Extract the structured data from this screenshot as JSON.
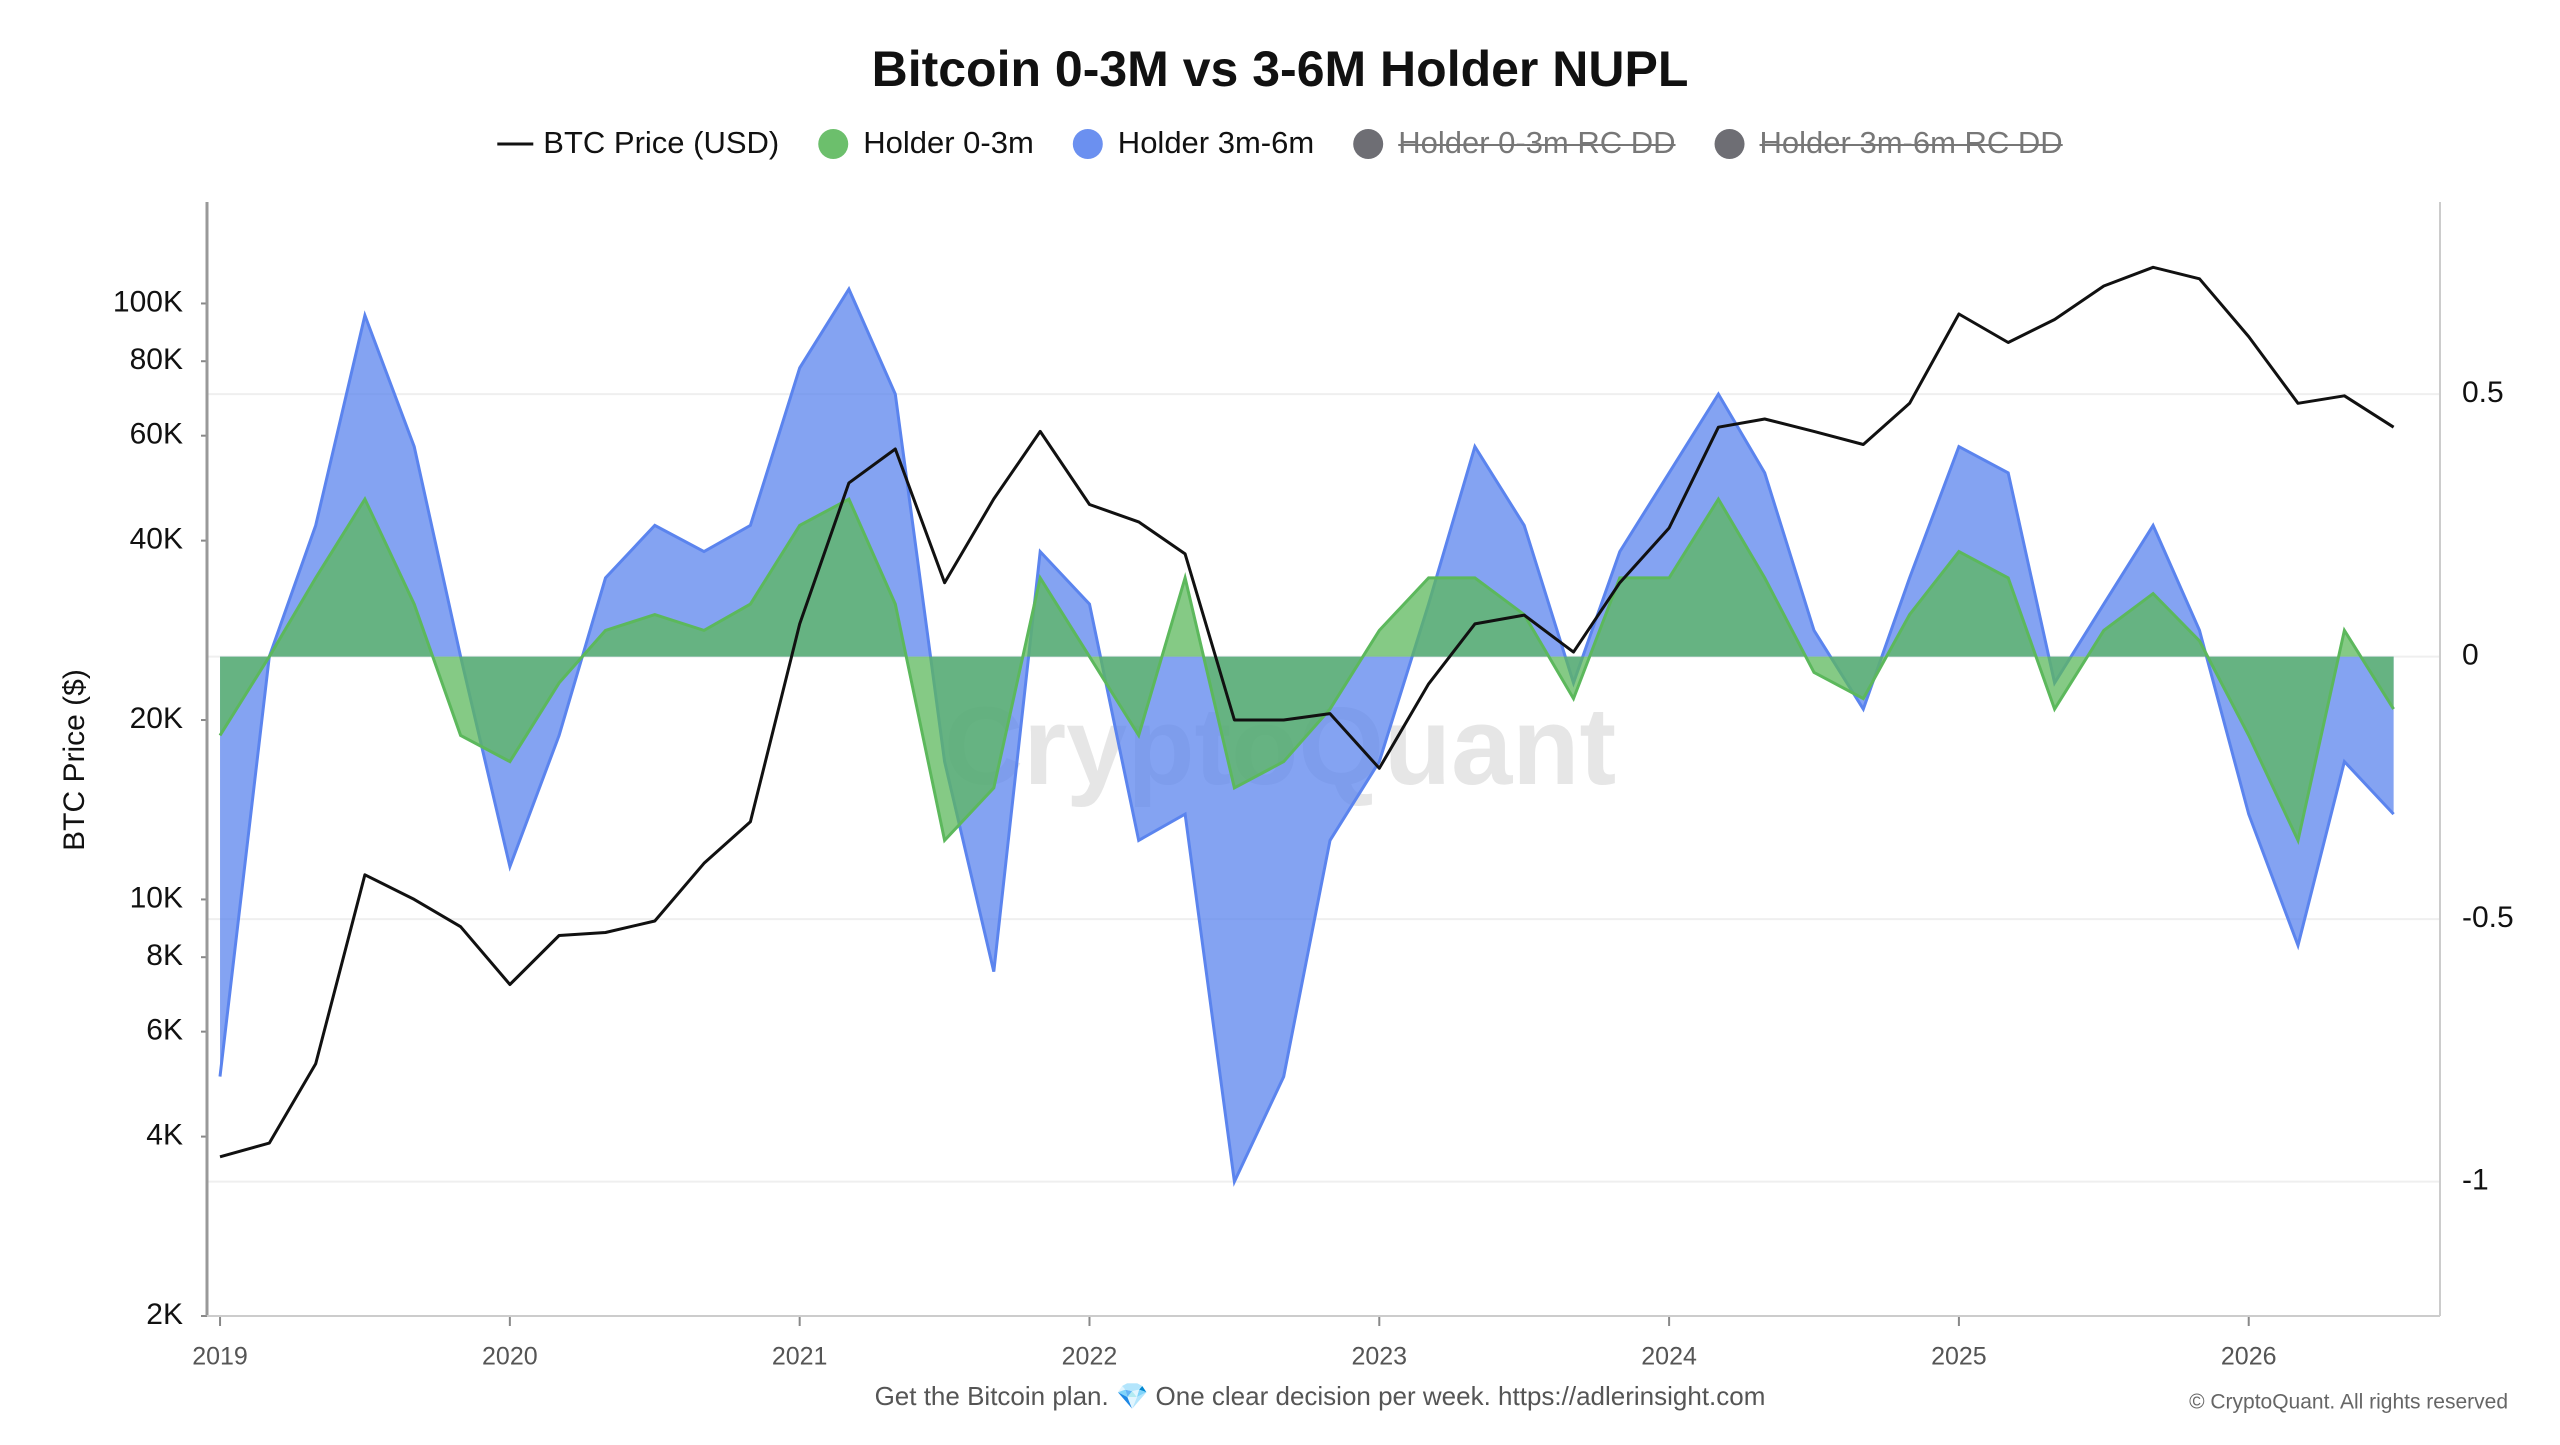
{
  "chart_data": {
    "type": "line",
    "title": "Bitcoin 0-3M vs 3-6M Holder NUPL",
    "y_label": "BTC Price ($)",
    "watermark": "CryptoQuant",
    "footer": "Get the Bitcoin plan. 💎 One clear decision per week. https://adlerinsight.com",
    "copyright": "© CryptoQuant. All rights reserved",
    "log_y": true,
    "grid": true,
    "x": [
      2019,
      2019.17,
      2019.33,
      2019.5,
      2019.67,
      2019.83,
      2020,
      2020.17,
      2020.33,
      2020.5,
      2020.67,
      2020.83,
      2021,
      2021.17,
      2021.33,
      2021.5,
      2021.67,
      2021.83,
      2022,
      2022.17,
      2022.33,
      2022.5,
      2022.67,
      2022.83,
      2023,
      2023.17,
      2023.33,
      2023.5,
      2023.67,
      2023.83,
      2024,
      2024.17,
      2024.33,
      2024.5,
      2024.67,
      2024.83,
      2025,
      2025.17,
      2025.33,
      2025.5,
      2025.67,
      2025.83,
      2026,
      2026.17,
      2026.33,
      2026.5
    ],
    "xlim": [
      2018.955,
      2026.66
    ],
    "xticks": [
      2019,
      2020,
      2021,
      2022,
      2023,
      2024,
      2025,
      2026
    ],
    "ylim": [
      2000,
      148000
    ],
    "yticks": [
      {
        "value": 2000,
        "label": "2K"
      },
      {
        "value": 4000,
        "label": "4K"
      },
      {
        "value": 6000,
        "label": "6K"
      },
      {
        "value": 8000,
        "label": "8K"
      },
      {
        "value": 10000,
        "label": "10K"
      },
      {
        "value": 20000,
        "label": "20K"
      },
      {
        "value": 40000,
        "label": "40K"
      },
      {
        "value": 60000,
        "label": "60K"
      },
      {
        "value": 80000,
        "label": "80K"
      },
      {
        "value": 100000,
        "label": "100K"
      }
    ],
    "y2lim": [
      -1.256,
      0.866
    ],
    "y2ticks": [
      -1,
      -0.5,
      0,
      0.5
    ],
    "series": [
      {
        "name": "BTC Price (USD)",
        "color": "#111111",
        "style": "line",
        "values": [
          3700,
          3900,
          5300,
          11000,
          10000,
          9000,
          7200,
          8700,
          8800,
          9200,
          11500,
          13500,
          29000,
          50000,
          57000,
          34000,
          47000,
          61000,
          46000,
          43000,
          38000,
          20000,
          20000,
          20500,
          16600,
          23000,
          29000,
          30000,
          26000,
          34000,
          42000,
          62000,
          64000,
          61000,
          58000,
          68000,
          96000,
          86000,
          94000,
          107000,
          115000,
          110000,
          88000,
          68000,
          70000,
          62000
        ]
      },
      {
        "name": "Holder 0-3m",
        "color": "#5cb85c",
        "style": "area",
        "axis": "y2",
        "values": [
          -0.15,
          0,
          0.15,
          0.3,
          0.1,
          -0.15,
          -0.2,
          -0.05,
          0.05,
          0.08,
          0.05,
          0.1,
          0.25,
          0.3,
          0.1,
          -0.35,
          -0.25,
          0.15,
          0,
          -0.15,
          0.15,
          -0.25,
          -0.2,
          -0.1,
          0.05,
          0.15,
          0.15,
          0.08,
          -0.08,
          0.15,
          0.15,
          0.3,
          0.15,
          -0.03,
          -0.08,
          0.08,
          0.2,
          0.15,
          -0.1,
          0.05,
          0.12,
          0.03,
          -0.15,
          -0.35,
          0.05,
          -0.1
        ]
      },
      {
        "name": "Holder 3m-6m",
        "color": "#5b84ee",
        "style": "area",
        "axis": "y2",
        "values": [
          -0.8,
          0,
          0.25,
          0.65,
          0.4,
          0,
          -0.4,
          -0.15,
          0.15,
          0.25,
          0.2,
          0.25,
          0.55,
          0.7,
          0.5,
          -0.2,
          -0.6,
          0.2,
          0.1,
          -0.35,
          -0.3,
          -1.0,
          -0.8,
          -0.35,
          -0.2,
          0.1,
          0.4,
          0.25,
          -0.05,
          0.2,
          0.35,
          0.5,
          0.35,
          0.05,
          -0.1,
          0.15,
          0.4,
          0.35,
          -0.05,
          0.1,
          0.25,
          0.05,
          -0.3,
          -0.55,
          -0.2,
          -0.3
        ]
      },
      {
        "name": "Holder 0-3m RC DD",
        "color": "#6e6e74",
        "visible": false
      },
      {
        "name": "Holder 3m-6m RC DD",
        "color": "#6e6e74",
        "visible": false
      }
    ]
  }
}
